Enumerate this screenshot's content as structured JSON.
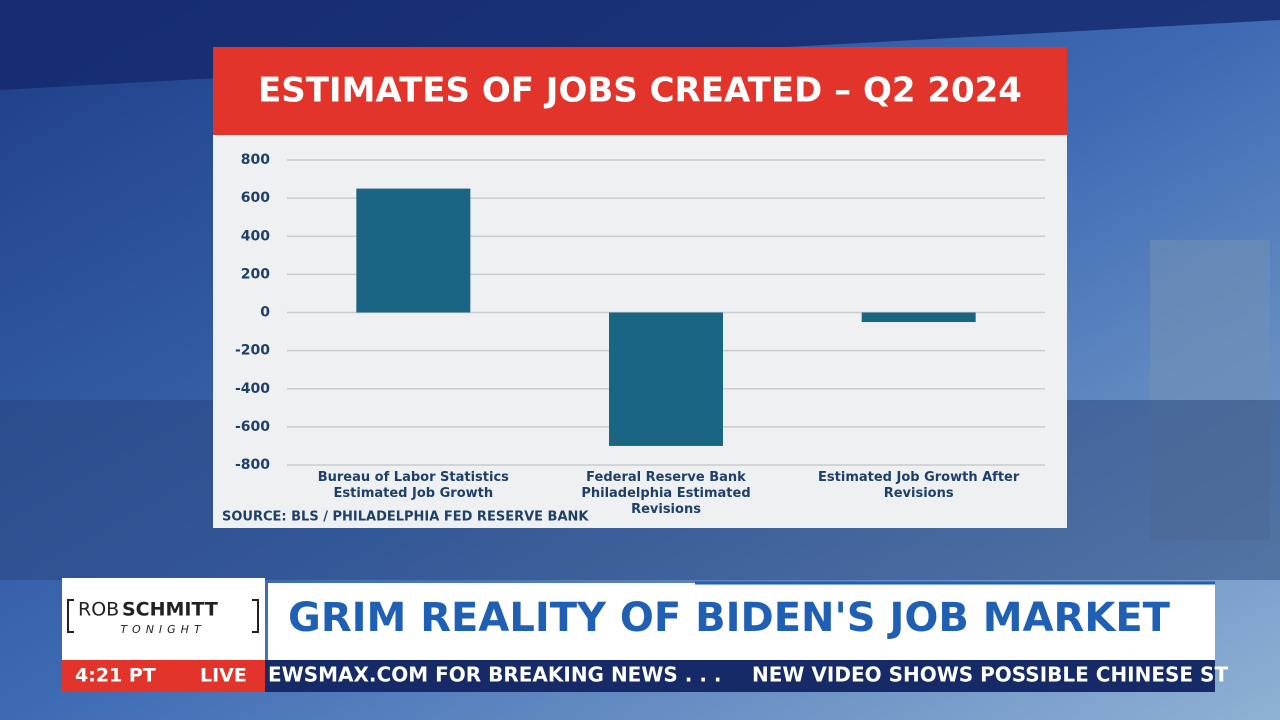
{
  "chart_data": {
    "type": "bar",
    "title": "ESTIMATES OF JOBS CREATED – Q2 2024",
    "source": "SOURCE: BLS / PHILADELPHIA FED RESERVE BANK",
    "categories": [
      "Bureau of Labor Statistics Estimated Job Growth",
      "Federal Reserve Bank Philadelphia Estimated Revisions",
      "Estimated Job Growth After Revisions"
    ],
    "values": [
      650,
      -700,
      -50
    ],
    "color": "#1b6584",
    "ylim": [
      -800,
      800
    ],
    "yticks": [
      -800,
      -600,
      -400,
      -200,
      0,
      200,
      400,
      600,
      800
    ],
    "grid": true
  },
  "broadcast": {
    "logo": {
      "first": "ROB",
      "last": "SCHMITT",
      "sub": "TONIGHT"
    },
    "headline": "GRIM REALITY OF BIDEN'S JOB MARKET",
    "time": "4:21 PT",
    "live": "LIVE",
    "ticker": [
      "EWSMAX.COM FOR BREAKING NEWS . . .",
      "NEW VIDEO SHOWS POSSIBLE CHINESE ST"
    ]
  }
}
